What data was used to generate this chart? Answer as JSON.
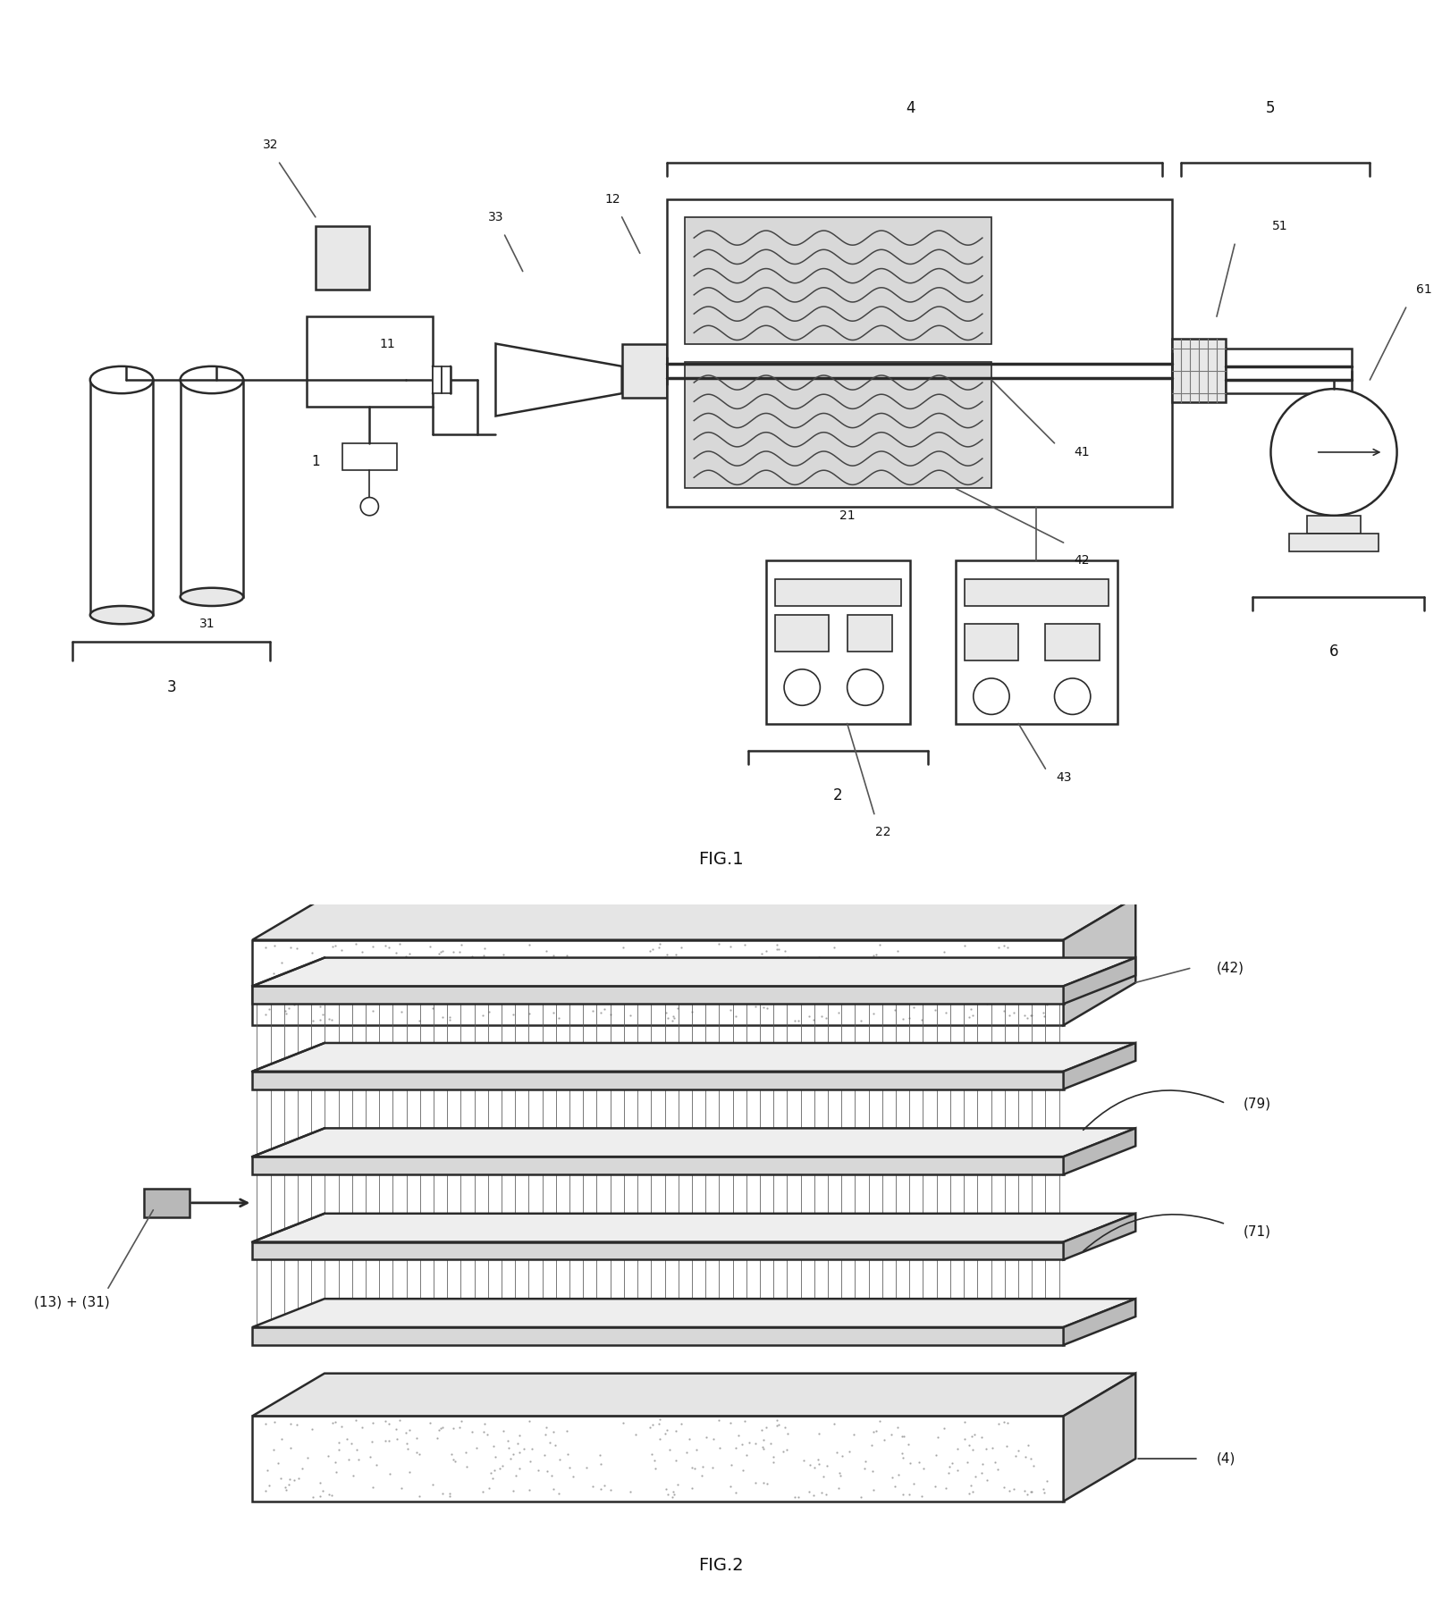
{
  "fig_width": 16.13,
  "fig_height": 18.07,
  "bg_color": "#ffffff",
  "lc": "#2a2a2a",
  "fill_light": "#e8e8e8",
  "fill_medium": "#d0d0d0",
  "fill_dark": "#b8b8b8",
  "fill_heater": "#d8d8d8",
  "fig1_title": "FIG.1",
  "fig2_title": "FIG.2"
}
